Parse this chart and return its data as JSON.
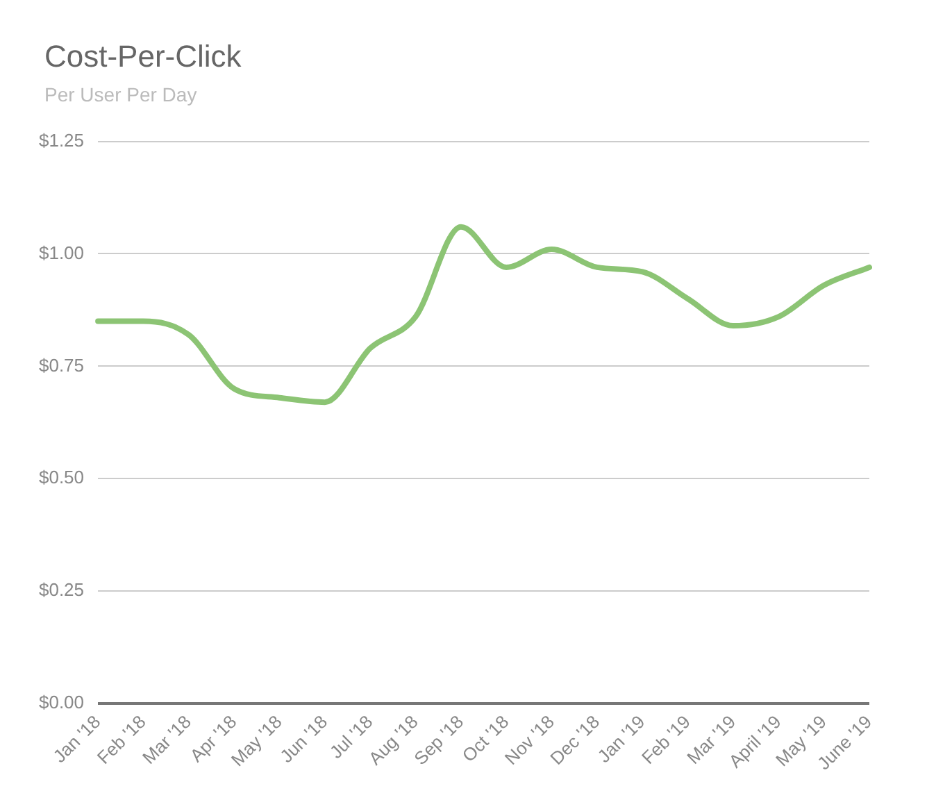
{
  "chart_data": {
    "type": "line",
    "title": "Cost-Per-Click",
    "subtitle": "Per User Per Day",
    "categories": [
      "Jan '18",
      "Feb '18",
      "Mar '18",
      "Apr '18",
      "May '18",
      "Jun '18",
      "Jul '18",
      "Aug '18",
      "Sep '18",
      "Oct '18",
      "Nov '18",
      "Dec '18",
      "Jan '19",
      "Feb '19",
      "Mar '19",
      "April '19",
      "May '19",
      "June '19"
    ],
    "series": [
      {
        "color": "#8cc474",
        "values": [
          0.85,
          0.85,
          0.82,
          0.7,
          0.68,
          0.67,
          0.79,
          0.86,
          1.06,
          0.97,
          1.01,
          0.97,
          0.96,
          0.9,
          0.84,
          0.86,
          0.93,
          0.97
        ]
      }
    ],
    "ylim": [
      0,
      1.25
    ],
    "yticks": [
      {
        "value": 0,
        "label": "$0.00"
      },
      {
        "value": 0.25,
        "label": "$0.25"
      },
      {
        "value": 0.5,
        "label": "$0.50"
      },
      {
        "value": 0.75,
        "label": "$0.75"
      },
      {
        "value": 1,
        "label": "$1.00"
      },
      {
        "value": 1.25,
        "label": "$1.25"
      }
    ],
    "grid": "y",
    "marker": "none",
    "line_style": "solid",
    "legend": false
  }
}
